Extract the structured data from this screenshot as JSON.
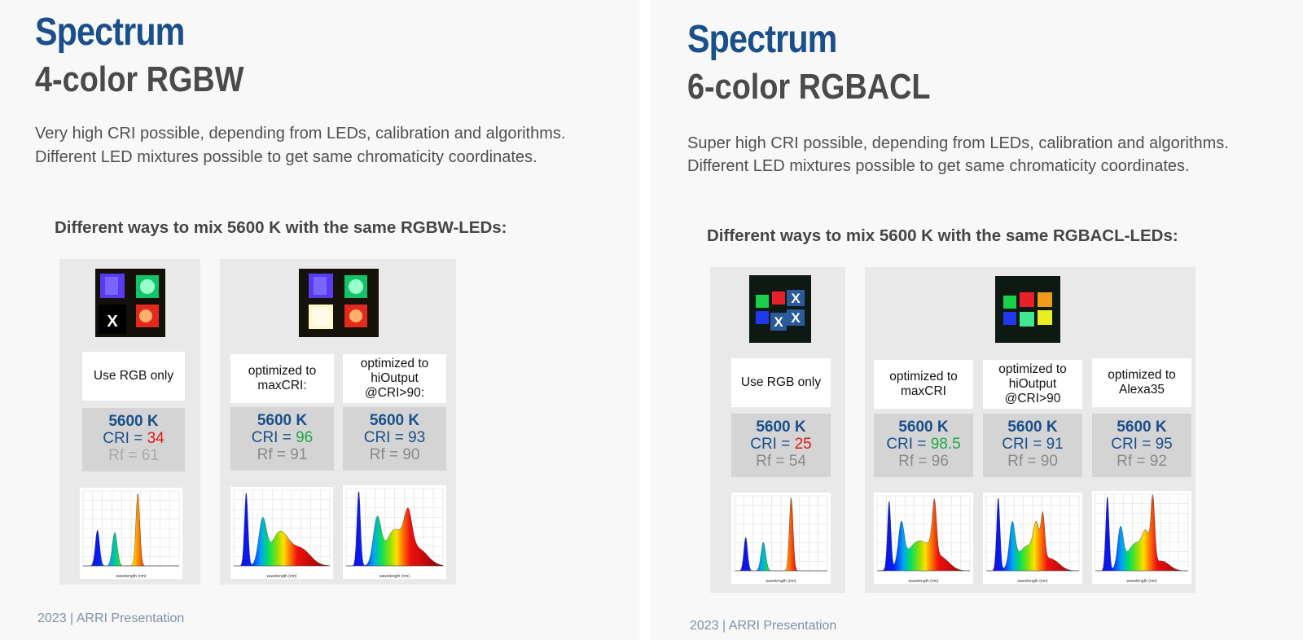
{
  "slides": [
    {
      "title": "Spectrum",
      "subtitle": "4-color RGBW",
      "paragraph": [
        "Very high CRI possible, depending from LEDs, calibration and algorithms.",
        "Different LED mixtures possible to get same chromaticity coordinates."
      ],
      "heading": "Different ways to mix 5600 K with the same RGBW-LEDs:",
      "footer": "2023 | ARRI Presentation",
      "columns": [
        {
          "label": "Use RGB only",
          "cct": "5600 K",
          "cri_prefix": "CRI = ",
          "cri_value": "34",
          "cri_color": "#e1191b",
          "rf": "Rf = 61",
          "led_mark": "X",
          "spectrum": "RGB",
          "axis_label": "wavelength (nm)"
        },
        {
          "label": "optimized to\nmaxCRI:",
          "cct": "5600 K",
          "cri_prefix": "CRI = ",
          "cri_value": "96",
          "cri_color": "#20a845",
          "rf": "Rf = 91",
          "spectrum": "RGBW",
          "axis_label": "wavelength (nm)"
        },
        {
          "label": "optimized to\nhiOutput\n@CRI>90:",
          "cct": "5600 K",
          "cri_prefix": "CRI = ",
          "cri_value": "93",
          "cri_color": "#1a4f8b",
          "rf": "Rf = 90",
          "spectrum": "RGBW",
          "axis_label": "wavelength (nm)"
        }
      ]
    },
    {
      "title": "Spectrum",
      "subtitle": "6-color RGBACL",
      "paragraph": [
        "Super high CRI possible, depending from LEDs, calibration and algorithms.",
        "Different LED mixtures possible to get same chromaticity coordinates."
      ],
      "heading": "Different ways to mix 5600 K with the same RGBACL-LEDs:",
      "footer": "2023 | ARRI Presentation",
      "columns": [
        {
          "label": "Use RGB only",
          "cct": "5600 K",
          "cri_prefix": "CRI = ",
          "cri_value": "25",
          "cri_color": "#e1191b",
          "rf": "Rf = 54",
          "led_mark": "X",
          "spectrum": "RGB",
          "axis_label": "wavelength (nm)"
        },
        {
          "label": "optimized to\nmaxCRI",
          "cct": "5600 K",
          "cri_prefix": "CRI = ",
          "cri_value": "98.5",
          "cri_color": "#20a845",
          "rf": "Rf = 96",
          "spectrum": "RGBACL",
          "axis_label": "wavelength (nm)"
        },
        {
          "label": "optimized to\nhiOutput\n@CRI>90",
          "cct": "5600 K",
          "cri_prefix": "CRI = ",
          "cri_value": "91",
          "cri_color": "#1a4f8b",
          "rf": "Rf = 90",
          "spectrum": "RGBACL",
          "axis_label": "wavelength (nm)"
        },
        {
          "label": "optimized to\nAlexa35",
          "cct": "5600 K",
          "cri_prefix": "CRI = ",
          "cri_value": "95",
          "cri_color": "#1a4f8b",
          "rf": "Rf = 92",
          "spectrum": "RGBACL",
          "axis_label": "wavelength (nm)"
        }
      ]
    }
  ],
  "colors": {
    "title_blue": "#1a4f8b",
    "cri_red": "#e1191b",
    "cri_green": "#20a845",
    "rf_gray": "#8a8a8a"
  }
}
